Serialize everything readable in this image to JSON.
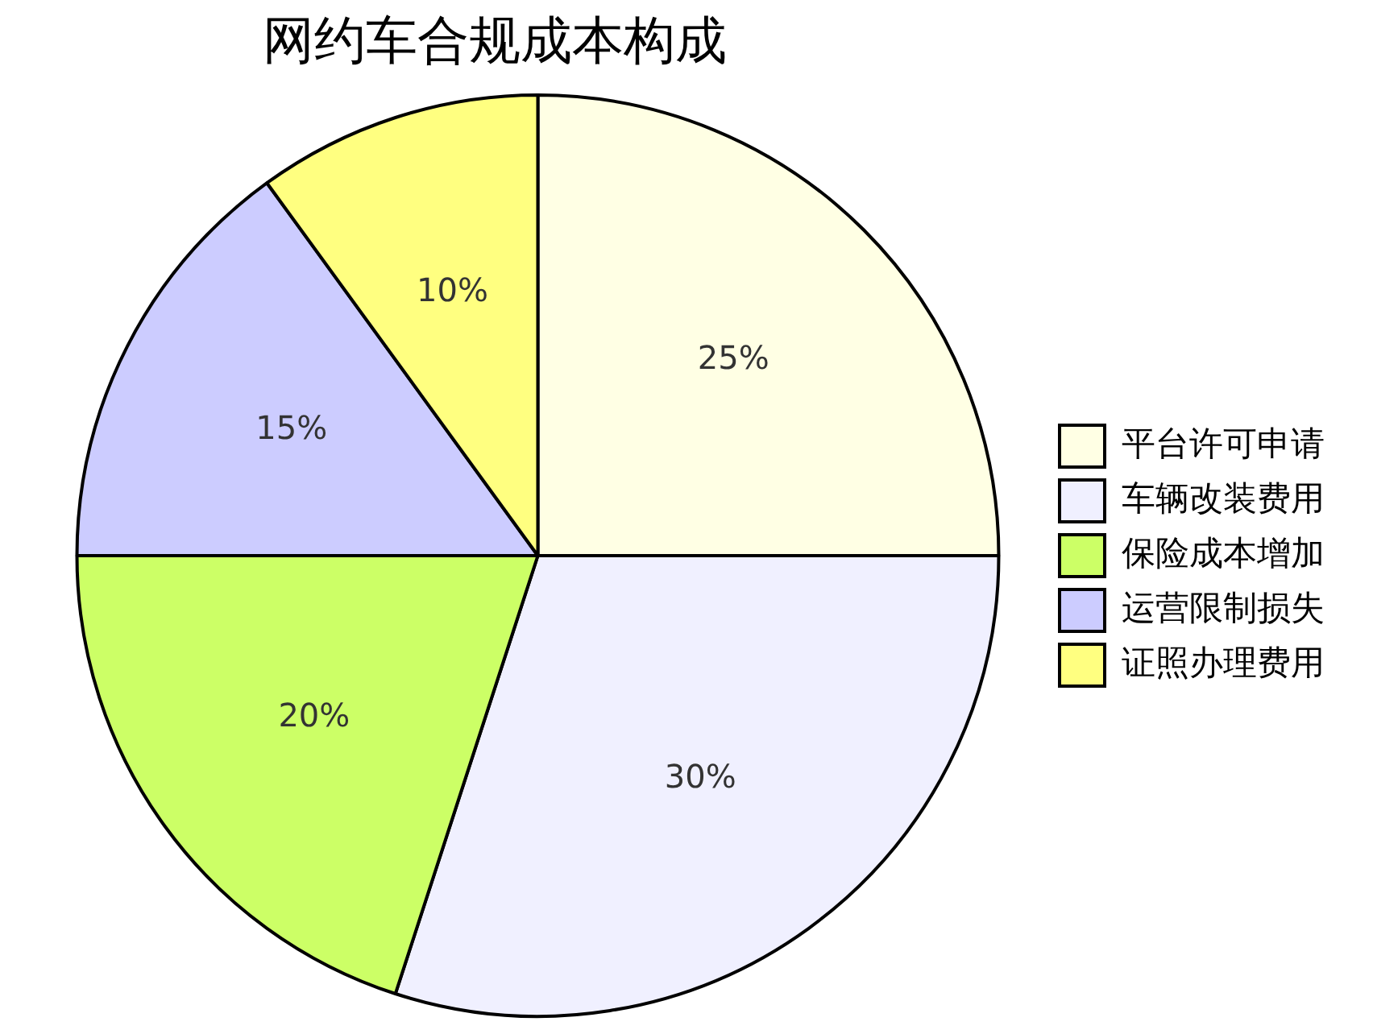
{
  "chart_data": {
    "type": "pie",
    "title": "网约车合规成本构成",
    "categories": [
      "平台许可申请",
      "车辆改装费用",
      "保险成本增加",
      "运营限制损失",
      "证照办理费用"
    ],
    "values": [
      25,
      30,
      20,
      15,
      10
    ],
    "value_labels": [
      "25%",
      "30%",
      "20%",
      "15%",
      "10%"
    ],
    "colors": [
      "#ffffe4",
      "#f0f0ff",
      "#ccff66",
      "#ccccff",
      "#ffff80"
    ],
    "legend": "right"
  }
}
